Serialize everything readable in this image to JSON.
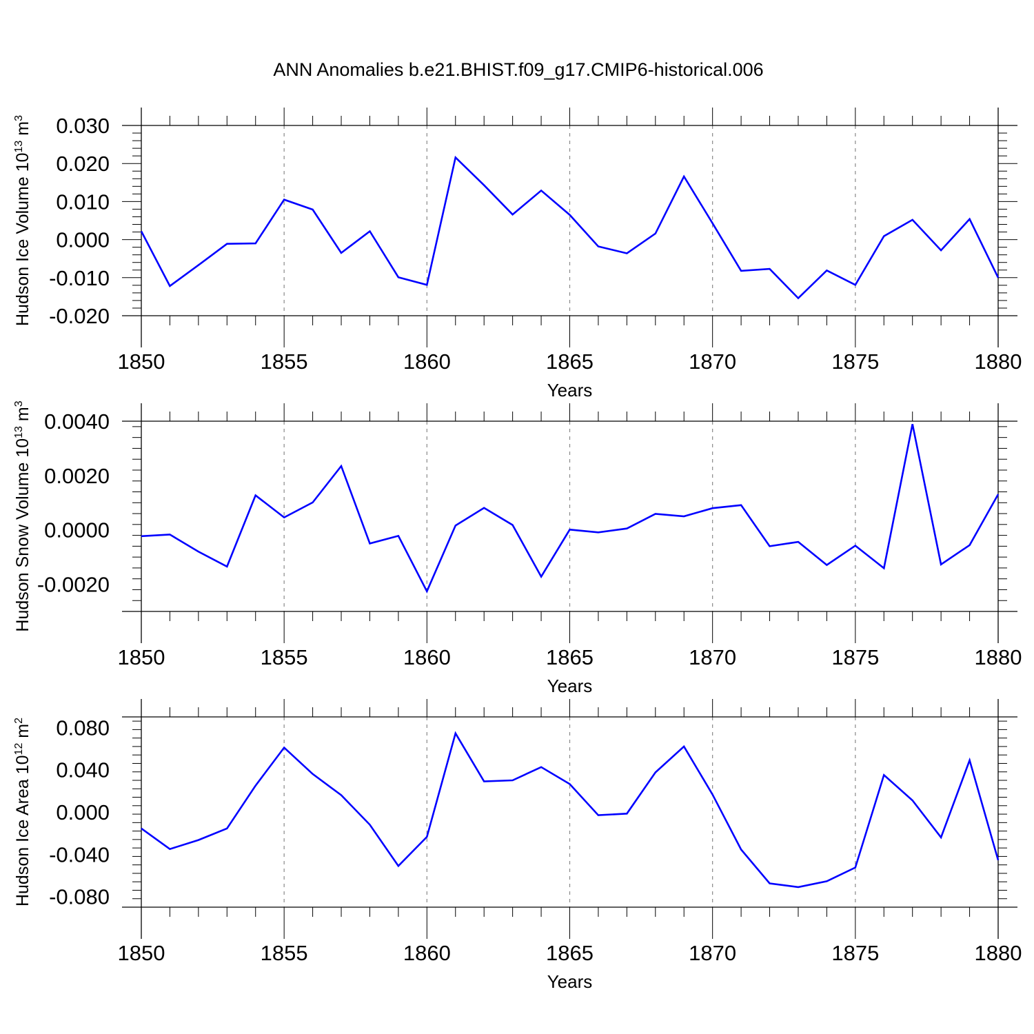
{
  "page": {
    "title": "ANN Anomalies b.e21.BHIST.f09_g17.CMIP6-historical.006"
  },
  "colors": {
    "line": "#0000ff",
    "axis": "#000000",
    "grid": "#888888"
  },
  "chart_data": [
    {
      "type": "line",
      "title": "ANN Anomalies b.e21.BHIST.f09_g17.CMIP6-historical.006",
      "ylabel": {
        "main": "Hudson Ice Volume 10",
        "exp": "13",
        "unit": " m",
        "unit_exp": "3"
      },
      "xlabel": "Years",
      "xlim": [
        1850,
        1880
      ],
      "ylim": [
        -0.02,
        0.03
      ],
      "yticks": [
        -0.02,
        -0.01,
        0.0,
        0.01,
        0.02,
        0.03
      ],
      "ytick_labels": [
        "-0.020",
        "-0.010",
        "0.000",
        "0.010",
        "0.020",
        "0.030"
      ],
      "xticks": [
        1850,
        1855,
        1860,
        1865,
        1870,
        1875,
        1880
      ],
      "xtick_labels": [
        "1850",
        "1855",
        "1860",
        "1865",
        "1870",
        "1875",
        "1880"
      ],
      "grid": "vertical dashed",
      "x": [
        1850,
        1851,
        1852,
        1853,
        1854,
        1855,
        1856,
        1857,
        1858,
        1859,
        1860,
        1861,
        1862,
        1863,
        1864,
        1865,
        1866,
        1867,
        1868,
        1869,
        1870,
        1871,
        1872,
        1873,
        1874,
        1875,
        1876,
        1877,
        1878,
        1879,
        1880
      ],
      "values": [
        0.0022,
        -0.0122,
        -0.0067,
        -0.0011,
        -0.001,
        0.0105,
        0.0079,
        -0.0035,
        0.0022,
        -0.0099,
        -0.0119,
        0.0216,
        0.0143,
        0.0066,
        0.0129,
        0.0065,
        -0.0018,
        -0.0036,
        0.0016,
        0.0166,
        0.0043,
        -0.0082,
        -0.0077,
        -0.0154,
        -0.0081,
        -0.0119,
        0.0009,
        0.0052,
        -0.0028,
        0.0054,
        -0.01
      ]
    },
    {
      "type": "line",
      "ylabel": {
        "main": "Hudson Snow Volume 10",
        "exp": "13",
        "unit": " m",
        "unit_exp": "3"
      },
      "xlabel": "Years",
      "xlim": [
        1850,
        1880
      ],
      "ylim": [
        -0.003,
        0.004
      ],
      "yticks": [
        -0.002,
        0.0,
        0.002,
        0.004
      ],
      "ytick_labels": [
        "-0.0020",
        "0.0000",
        "0.0020",
        "0.0040"
      ],
      "xticks": [
        1850,
        1855,
        1860,
        1865,
        1870,
        1875,
        1880
      ],
      "xtick_labels": [
        "1850",
        "1855",
        "1860",
        "1865",
        "1870",
        "1875",
        "1880"
      ],
      "grid": "vertical dashed",
      "x": [
        1850,
        1851,
        1852,
        1853,
        1854,
        1855,
        1856,
        1857,
        1858,
        1859,
        1860,
        1861,
        1862,
        1863,
        1864,
        1865,
        1866,
        1867,
        1868,
        1869,
        1870,
        1871,
        1872,
        1873,
        1874,
        1875,
        1876,
        1877,
        1878,
        1879,
        1880
      ],
      "values": [
        -0.00023,
        -0.00017,
        -0.0008,
        -0.00135,
        0.00127,
        0.00046,
        0.00101,
        0.00235,
        -0.0005,
        -0.00022,
        -0.00226,
        0.00016,
        0.00081,
        0.00018,
        -0.00172,
        1e-05,
        -9e-05,
        5e-05,
        0.00059,
        0.0005,
        0.0008,
        0.00091,
        -0.0006,
        -0.00044,
        -0.00129,
        -0.00058,
        -0.00141,
        0.00389,
        -0.00127,
        -0.00056,
        0.00131
      ]
    },
    {
      "type": "line",
      "ylabel": {
        "main": "Hudson Ice Area 10",
        "exp": "12",
        "unit": " m",
        "unit_exp": "2"
      },
      "xlabel": "Years",
      "xlim": [
        1850,
        1880
      ],
      "ylim": [
        -0.09,
        0.09
      ],
      "yticks": [
        -0.08,
        -0.04,
        0.0,
        0.04,
        0.08
      ],
      "ytick_labels": [
        "-0.080",
        "-0.040",
        "0.000",
        "0.040",
        "0.080"
      ],
      "xticks": [
        1850,
        1855,
        1860,
        1865,
        1870,
        1875,
        1880
      ],
      "xtick_labels": [
        "1850",
        "1855",
        "1860",
        "1865",
        "1870",
        "1875",
        "1880"
      ],
      "grid": "vertical dashed",
      "x": [
        1850,
        1851,
        1852,
        1853,
        1854,
        1855,
        1856,
        1857,
        1858,
        1859,
        1860,
        1861,
        1862,
        1863,
        1864,
        1865,
        1866,
        1867,
        1868,
        1869,
        1870,
        1871,
        1872,
        1873,
        1874,
        1875,
        1876,
        1877,
        1878,
        1879,
        1880
      ],
      "values": [
        -0.0155,
        -0.035,
        -0.0265,
        -0.0155,
        0.025,
        0.061,
        0.036,
        0.016,
        -0.012,
        -0.051,
        -0.0235,
        0.0745,
        0.029,
        0.03,
        0.0425,
        0.0265,
        -0.003,
        -0.0015,
        0.0375,
        0.062,
        0.0165,
        -0.0355,
        -0.0675,
        -0.071,
        -0.0655,
        -0.0525,
        0.035,
        0.011,
        -0.024,
        0.049,
        -0.0455
      ]
    }
  ]
}
